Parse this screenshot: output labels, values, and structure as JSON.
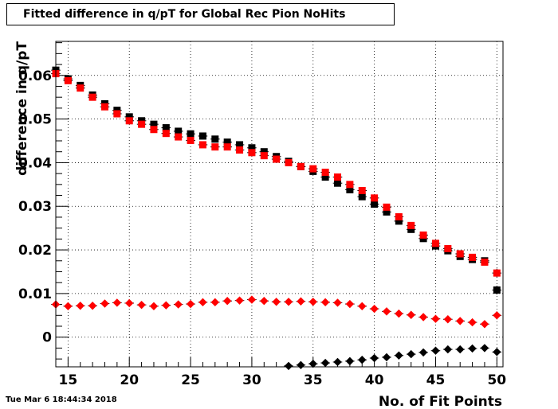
{
  "chart_data": {
    "type": "scatter",
    "title": "Fitted difference in q/pT for Global Rec Pion NoHits",
    "xlabel": "No. of Fit Points",
    "ylabel": "difference in q/pT",
    "xlim": [
      14,
      50.5
    ],
    "ylim": [
      -0.0068,
      0.0678
    ],
    "xticks": [
      15,
      20,
      25,
      30,
      35,
      40,
      45,
      50
    ],
    "yticks": [
      0,
      0.01,
      0.02,
      0.03,
      0.04,
      0.05,
      0.06
    ],
    "ytick_labels": [
      "0",
      "0.01",
      "0.02",
      "0.03",
      "0.04",
      "0.05",
      "0.06"
    ],
    "grid": true,
    "series": [
      {
        "color": "#000000",
        "marker": "square",
        "x": [
          14,
          15,
          16,
          17,
          18,
          19,
          20,
          21,
          22,
          23,
          24,
          25,
          26,
          27,
          28,
          29,
          30,
          31,
          32,
          33,
          34,
          35,
          36,
          37,
          38,
          39,
          40,
          41,
          42,
          43,
          44,
          45,
          46,
          47,
          48,
          49,
          50
        ],
        "y": [
          0.0612,
          0.0592,
          0.0577,
          0.0555,
          0.0535,
          0.052,
          0.0505,
          0.0496,
          0.0488,
          0.048,
          0.0472,
          0.0466,
          0.0461,
          0.0454,
          0.0447,
          0.0441,
          0.0434,
          0.0425,
          0.0414,
          0.0403,
          0.0391,
          0.038,
          0.0367,
          0.0353,
          0.0338,
          0.0322,
          0.0305,
          0.0287,
          0.0266,
          0.0247,
          0.0226,
          0.0209,
          0.0198,
          0.0185,
          0.0178,
          0.0175,
          0.0108
        ],
        "yerr": [
          0.0006,
          0.0005,
          0.0005,
          0.0005,
          0.0005,
          0.0005,
          0.0005,
          0.0005,
          0.0005,
          0.0005,
          0.0005,
          0.0005,
          0.0005,
          0.0005,
          0.0005,
          0.0005,
          0.0005,
          0.0005,
          0.0005,
          0.0005,
          0.0005,
          0.0005,
          0.0005,
          0.0005,
          0.0005,
          0.0005,
          0.0005,
          0.0005,
          0.0005,
          0.0005,
          0.0005,
          0.0005,
          0.0005,
          0.0005,
          0.0005,
          0.0006,
          0.001
        ]
      },
      {
        "color": "#ff0000",
        "marker": "square",
        "x": [
          14,
          15,
          16,
          17,
          18,
          19,
          20,
          21,
          22,
          23,
          24,
          25,
          26,
          27,
          28,
          29,
          30,
          31,
          32,
          33,
          34,
          35,
          36,
          37,
          38,
          39,
          40,
          41,
          42,
          43,
          44,
          45,
          46,
          47,
          48,
          49,
          50
        ],
        "y": [
          0.0604,
          0.0588,
          0.0571,
          0.055,
          0.0528,
          0.0512,
          0.0496,
          0.0488,
          0.0476,
          0.0467,
          0.0459,
          0.0451,
          0.0441,
          0.0436,
          0.0436,
          0.0429,
          0.0423,
          0.0416,
          0.0408,
          0.04,
          0.0391,
          0.0386,
          0.0378,
          0.0367,
          0.035,
          0.0336,
          0.0319,
          0.0298,
          0.0276,
          0.0256,
          0.0234,
          0.0215,
          0.0203,
          0.0191,
          0.0183,
          0.0172,
          0.0147
        ],
        "yerr": [
          0.0006,
          0.0005,
          0.0005,
          0.0005,
          0.0005,
          0.0005,
          0.0005,
          0.0005,
          0.0005,
          0.0005,
          0.0005,
          0.0005,
          0.0005,
          0.0005,
          0.0005,
          0.0005,
          0.0005,
          0.0005,
          0.0005,
          0.0005,
          0.0005,
          0.0005,
          0.0005,
          0.0005,
          0.0005,
          0.0005,
          0.0005,
          0.0005,
          0.0005,
          0.0005,
          0.0005,
          0.0005,
          0.0005,
          0.0005,
          0.0005,
          0.0006,
          0.001
        ]
      },
      {
        "color": "#ff0000",
        "marker": "diamond",
        "x": [
          14,
          15,
          16,
          17,
          18,
          19,
          20,
          21,
          22,
          23,
          24,
          25,
          26,
          27,
          28,
          29,
          30,
          31,
          32,
          33,
          34,
          35,
          36,
          37,
          38,
          39,
          40,
          41,
          42,
          43,
          44,
          45,
          46,
          47,
          48,
          49,
          50
        ],
        "y": [
          0.0075,
          0.0071,
          0.0072,
          0.0072,
          0.0077,
          0.0079,
          0.0078,
          0.0074,
          0.0071,
          0.0073,
          0.0075,
          0.0076,
          0.008,
          0.008,
          0.0083,
          0.0084,
          0.0086,
          0.0083,
          0.0081,
          0.0081,
          0.0082,
          0.0081,
          0.008,
          0.0079,
          0.0076,
          0.0071,
          0.0065,
          0.0059,
          0.0054,
          0.0051,
          0.0046,
          0.0042,
          0.0041,
          0.0037,
          0.0034,
          0.003,
          0.005
        ],
        "yerr": [
          0.0005,
          0.0005,
          0.0004,
          0.0004,
          0.0004,
          0.0004,
          0.0004,
          0.0004,
          0.0004,
          0.0004,
          0.0004,
          0.0004,
          0.0004,
          0.0004,
          0.0004,
          0.0004,
          0.0004,
          0.0004,
          0.0004,
          0.0004,
          0.0004,
          0.0004,
          0.0004,
          0.0004,
          0.0004,
          0.0004,
          0.0004,
          0.0004,
          0.0004,
          0.0004,
          0.0004,
          0.0004,
          0.0004,
          0.0004,
          0.0004,
          0.0005,
          0.0009
        ]
      },
      {
        "color": "#000000",
        "marker": "diamond",
        "x": [
          33,
          34,
          35,
          36,
          37,
          38,
          39,
          40,
          41,
          42,
          43,
          44,
          45,
          46,
          47,
          48,
          49,
          50
        ],
        "y": [
          -0.0066,
          -0.0064,
          -0.0061,
          -0.0059,
          -0.0057,
          -0.0055,
          -0.0052,
          -0.0048,
          -0.0046,
          -0.0042,
          -0.0039,
          -0.0035,
          -0.0031,
          -0.0028,
          -0.0028,
          -0.0026,
          -0.0025,
          -0.0034
        ],
        "yerr": [
          0.0004,
          0.0004,
          0.0004,
          0.0004,
          0.0004,
          0.0004,
          0.0004,
          0.0004,
          0.0004,
          0.0004,
          0.0004,
          0.0004,
          0.0004,
          0.0004,
          0.0004,
          0.0004,
          0.0005,
          0.0008
        ]
      }
    ]
  },
  "footer": {
    "timestamp": "Tue Mar  6 18:44:34 2018"
  }
}
